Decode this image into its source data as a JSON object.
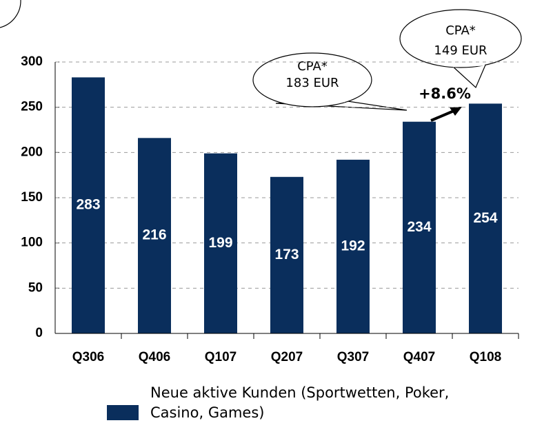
{
  "chart_data": {
    "type": "bar",
    "categories": [
      "Q306",
      "Q406",
      "Q107",
      "Q207",
      "Q307",
      "Q407",
      "Q108"
    ],
    "series": [
      {
        "name": "Neue aktive Kunden (Sportwetten, Poker, Casino, Games)",
        "color": "#0a2e5c",
        "values": [
          283,
          216,
          199,
          173,
          192,
          234,
          254
        ]
      }
    ],
    "ylim": [
      0,
      300
    ],
    "yticks": [
      0,
      50,
      100,
      150,
      200,
      250,
      300
    ],
    "grid": true,
    "callouts": [
      [
        "CPA*",
        "183 EUR"
      ],
      [
        "CPA*",
        "149 EUR"
      ]
    ],
    "growth_label": "+8.6%"
  }
}
